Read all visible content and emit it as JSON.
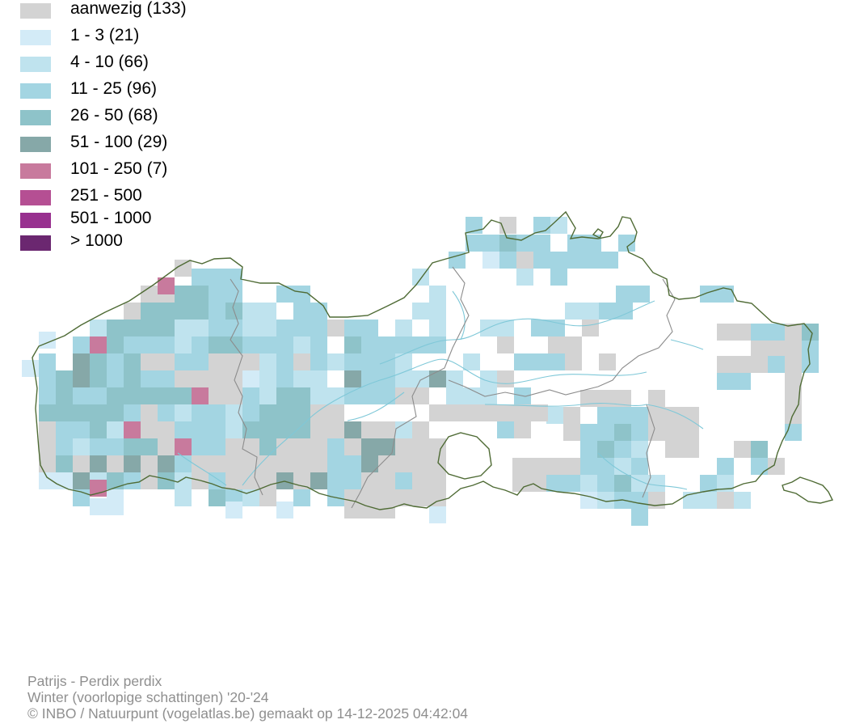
{
  "legend": {
    "items": [
      {
        "label": "aanwezig (133)",
        "color": "#d3d3d3"
      },
      {
        "label": "1 - 3 (21)",
        "color": "#d3ebf7"
      },
      {
        "label": "4 - 10 (66)",
        "color": "#bfe3ee"
      },
      {
        "label": "11 - 25 (96)",
        "color": "#a3d5e2"
      },
      {
        "label": "26 - 50 (68)",
        "color": "#8ec3c9"
      },
      {
        "label": "51 - 100 (29)",
        "color": "#86a8a8"
      },
      {
        "label": "101 - 250 (7)",
        "color": "#c87a9d"
      },
      {
        "label": "251 - 500",
        "color": "#b54f93"
      },
      {
        "label": "501 - 1000",
        "color": "#98308f"
      },
      {
        "label": "> 1000",
        "color": "#6b2770"
      }
    ]
  },
  "map": {
    "border_color": "#4f6b35",
    "province_border_color": "#8c8c8c",
    "river_color": "#7fc8d8"
  },
  "footer": {
    "species": "Patrijs - Perdix perdix",
    "period": "Winter (voorlopige schattingen) '20-'24",
    "credit": "© INBO / Natuurpunt (vogelatlas.be) gemaakt op 14-12-2025 04:42:04"
  }
}
